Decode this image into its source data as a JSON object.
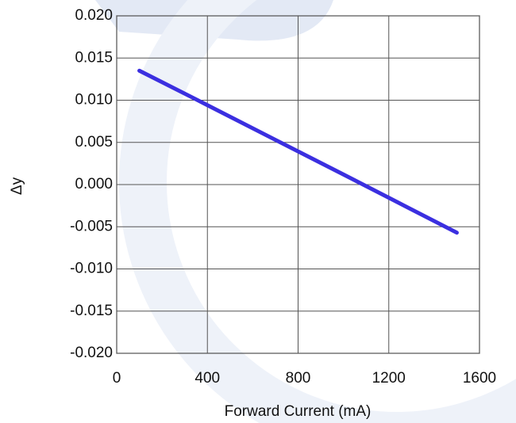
{
  "chart_data": {
    "type": "line",
    "x_label": "Forward Current (mA)",
    "y_label": "Δy",
    "x": [
      100,
      350,
      700,
      1000,
      1500
    ],
    "series": [
      {
        "color": "#3b2fe0",
        "values": [
          0.0135,
          0.0101,
          0.0053,
          0.0012,
          -0.0057
        ]
      }
    ],
    "xlim": [
      0,
      1600
    ],
    "xticks": [
      0,
      400,
      800,
      1200,
      1600
    ],
    "ylim": [
      -0.02,
      0.02
    ],
    "yticks": [
      {
        "value": -0.02,
        "label": "-0.020"
      },
      {
        "value": -0.015,
        "label": "-0.015"
      },
      {
        "value": -0.01,
        "label": "-0.010"
      },
      {
        "value": -0.005,
        "label": "-0.005"
      },
      {
        "value": 0,
        "label": "0.000"
      },
      {
        "value": 0.005,
        "label": "0.005"
      },
      {
        "value": 0.01,
        "label": "0.010"
      },
      {
        "value": 0.015,
        "label": "0.015"
      },
      {
        "value": 0.02,
        "label": "0.020"
      }
    ],
    "grid": true
  }
}
